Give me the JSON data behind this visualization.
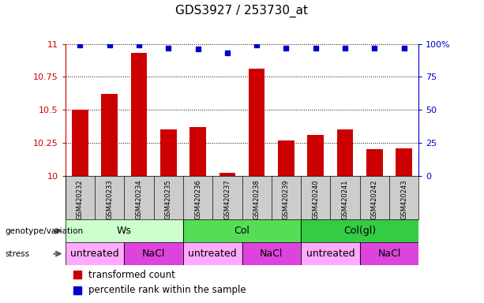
{
  "title": "GDS3927 / 253730_at",
  "samples": [
    "GSM420232",
    "GSM420233",
    "GSM420234",
    "GSM420235",
    "GSM420236",
    "GSM420237",
    "GSM420238",
    "GSM420239",
    "GSM420240",
    "GSM420241",
    "GSM420242",
    "GSM420243"
  ],
  "bar_values": [
    10.5,
    10.62,
    10.93,
    10.35,
    10.37,
    10.02,
    10.81,
    10.27,
    10.31,
    10.35,
    10.2,
    10.21
  ],
  "dot_values": [
    99,
    99,
    99,
    97,
    96,
    93,
    99,
    97,
    97,
    97,
    97,
    97
  ],
  "bar_color": "#cc0000",
  "dot_color": "#0000cc",
  "ylim_left": [
    10,
    11
  ],
  "ylim_right": [
    0,
    100
  ],
  "yticks_left": [
    10,
    10.25,
    10.5,
    10.75,
    11
  ],
  "yticks_right": [
    0,
    25,
    50,
    75,
    100
  ],
  "ytick_labels_left": [
    "10",
    "10.25",
    "10.5",
    "10.75",
    "11"
  ],
  "ytick_labels_right": [
    "0",
    "25",
    "50",
    "75",
    "100%"
  ],
  "genotype_groups": [
    {
      "label": "Ws",
      "color": "#ccffcc",
      "start": 0,
      "end": 4
    },
    {
      "label": "Col",
      "color": "#55dd55",
      "start": 4,
      "end": 8
    },
    {
      "label": "Col(gl)",
      "color": "#33cc44",
      "start": 8,
      "end": 12
    }
  ],
  "stress_groups": [
    {
      "label": "untreated",
      "color": "#ffaaff",
      "start": 0,
      "end": 2
    },
    {
      "label": "NaCl",
      "color": "#dd44dd",
      "start": 2,
      "end": 4
    },
    {
      "label": "untreated",
      "color": "#ffaaff",
      "start": 4,
      "end": 6
    },
    {
      "label": "NaCl",
      "color": "#dd44dd",
      "start": 6,
      "end": 8
    },
    {
      "label": "untreated",
      "color": "#ffaaff",
      "start": 8,
      "end": 10
    },
    {
      "label": "NaCl",
      "color": "#dd44dd",
      "start": 10,
      "end": 12
    }
  ],
  "legend_bar_label": "transformed count",
  "legend_dot_label": "percentile rank within the sample",
  "genotype_label": "genotype/variation",
  "stress_label": "stress",
  "bar_width": 0.55,
  "sample_bg_color": "#cccccc",
  "background_color": "#ffffff"
}
